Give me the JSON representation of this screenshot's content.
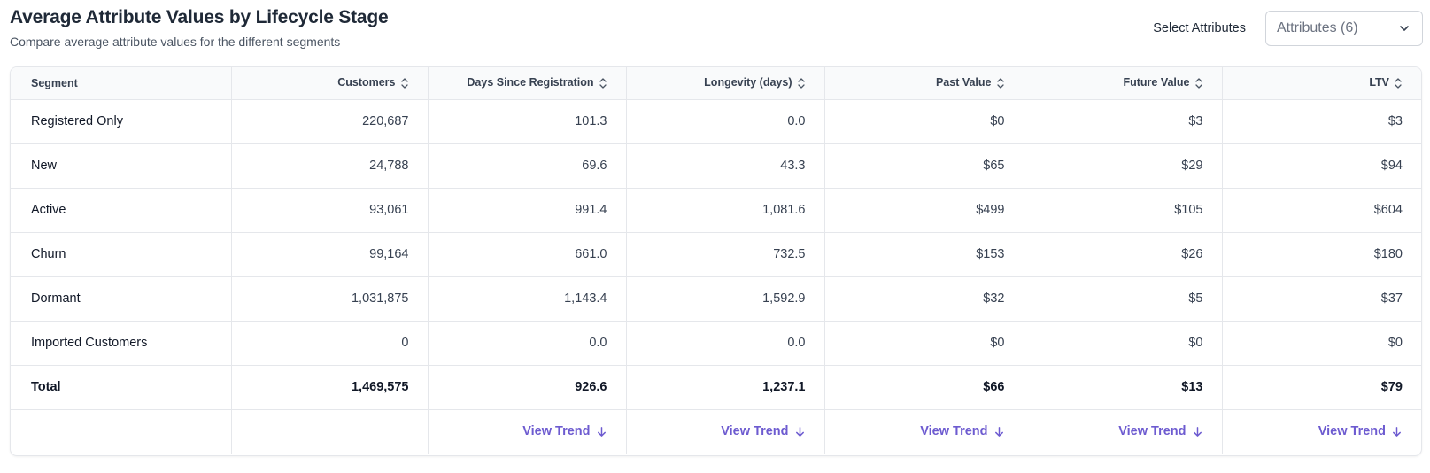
{
  "header": {
    "title": "Average Attribute Values by Lifecycle Stage",
    "subtitle": "Compare average attribute values for the different segments"
  },
  "attribute_select": {
    "label": "Select Attributes",
    "value": "Attributes (6)"
  },
  "table": {
    "columns": [
      "Segment",
      "Customers",
      "Days Since Registration",
      "Longevity (days)",
      "Past Value",
      "Future Value",
      "LTV"
    ],
    "rows": [
      [
        "Registered Only",
        "220,687",
        "101.3",
        "0.0",
        "$0",
        "$3",
        "$3"
      ],
      [
        "New",
        "24,788",
        "69.6",
        "43.3",
        "$65",
        "$29",
        "$94"
      ],
      [
        "Active",
        "93,061",
        "991.4",
        "1,081.6",
        "$499",
        "$105",
        "$604"
      ],
      [
        "Churn",
        "99,164",
        "661.0",
        "732.5",
        "$153",
        "$26",
        "$180"
      ],
      [
        "Dormant",
        "1,031,875",
        "1,143.4",
        "1,592.9",
        "$32",
        "$5",
        "$37"
      ],
      [
        "Imported Customers",
        "0",
        "0.0",
        "0.0",
        "$0",
        "$0",
        "$0"
      ]
    ],
    "total": [
      "Total",
      "1,469,575",
      "926.6",
      "1,237.1",
      "$66",
      "$13",
      "$79"
    ],
    "trend_label": "View Trend"
  },
  "colors": {
    "accent": "#6d5bd0",
    "border": "#e5e7eb",
    "header_bg": "#f9fafb"
  }
}
